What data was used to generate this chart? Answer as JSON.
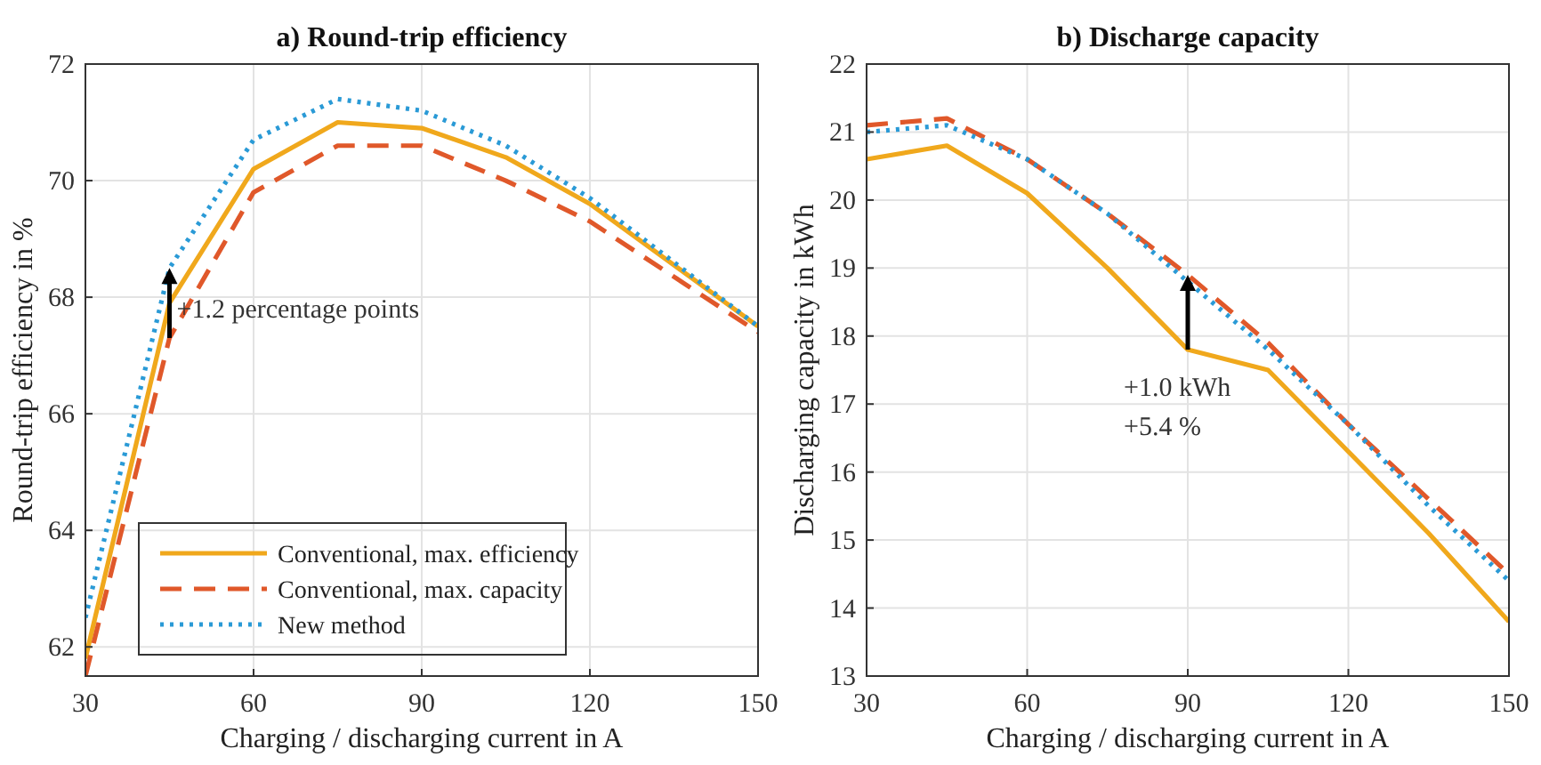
{
  "chart_data": [
    {
      "type": "line",
      "title": "a) Round-trip efficiency",
      "xlabel": "Charging / discharging current in A",
      "ylabel": "Round-trip efficiency in %",
      "x": [
        30,
        45,
        60,
        75,
        90,
        105,
        120,
        150
      ],
      "series": [
        {
          "name": "Conventional, max. efficiency",
          "color": "#f0a81c",
          "line_style": "solid",
          "values": [
            61.8,
            67.9,
            70.2,
            71.0,
            70.9,
            70.4,
            69.6,
            67.5
          ]
        },
        {
          "name": "Conventional, max. capacity",
          "color": "#e0582a",
          "line_style": "dashed",
          "values": [
            61.5,
            67.3,
            69.8,
            70.6,
            70.6,
            70.0,
            69.3,
            67.4
          ]
        },
        {
          "name": "New method",
          "color": "#2a9ad6",
          "line_style": "dotted",
          "values": [
            62.5,
            68.5,
            70.7,
            71.4,
            71.2,
            70.6,
            69.7,
            67.5
          ]
        }
      ],
      "annotations": [
        {
          "text": "+1.2 percentage points",
          "x": 45,
          "y": 67.9
        }
      ],
      "xlim": [
        30,
        150
      ],
      "xticks": [
        30,
        60,
        90,
        120,
        150
      ],
      "ylim": [
        61.5,
        72
      ],
      "yticks": [
        62,
        64,
        66,
        68,
        70,
        72
      ],
      "grid": true,
      "legend": "bottom left"
    },
    {
      "type": "line",
      "title": "b) Discharge capacity",
      "xlabel": "Charging / discharging current in A",
      "ylabel": "Discharging capacity in kWh",
      "x": [
        30,
        45,
        60,
        75,
        90,
        105,
        120,
        135,
        150
      ],
      "series": [
        {
          "color": "#f0a81c",
          "line_style": "solid",
          "values": [
            20.6,
            20.8,
            20.1,
            19.0,
            17.8,
            17.5,
            16.3,
            15.1,
            13.8
          ]
        },
        {
          "color": "#e0582a",
          "line_style": "dashed",
          "values": [
            21.1,
            21.2,
            20.6,
            19.8,
            18.9,
            17.9,
            16.7,
            15.6,
            14.5
          ]
        },
        {
          "color": "#2a9ad6",
          "line_style": "dotted",
          "values": [
            21.0,
            21.1,
            20.6,
            19.8,
            18.8,
            17.8,
            16.7,
            15.5,
            14.4
          ]
        }
      ],
      "annotations": [
        {
          "text": "+1.0 kWh",
          "x": 90,
          "y": 17.8
        },
        "+5.4 %"
      ],
      "xlim": [
        30,
        150
      ],
      "xticks": [
        30,
        60,
        90,
        120,
        150
      ],
      "ylim": [
        13,
        22
      ],
      "yticks": [
        13,
        14,
        15,
        16,
        17,
        18,
        19,
        20,
        21,
        22
      ],
      "grid": true
    }
  ]
}
